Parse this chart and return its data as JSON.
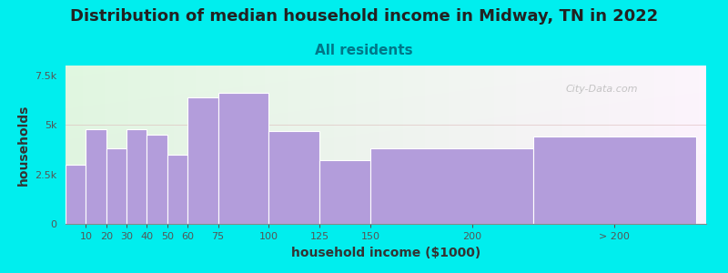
{
  "title": "Distribution of median household income in Midway, TN in 2022",
  "subtitle": "All residents",
  "xlabel": "household income ($1000)",
  "ylabel": "households",
  "background_outer": "#00EEEE",
  "bar_color": "#b39ddb",
  "bar_edge_color": "#b39ddb",
  "values": [
    3000,
    4800,
    3800,
    4800,
    4500,
    3500,
    6400,
    6600,
    4700,
    3200,
    3800,
    4400
  ],
  "bar_lefts": [
    0,
    10,
    20,
    30,
    40,
    50,
    60,
    75,
    100,
    125,
    150,
    230
  ],
  "bar_widths": [
    10,
    10,
    10,
    10,
    10,
    10,
    15,
    25,
    25,
    25,
    80,
    80
  ],
  "ylim": [
    0,
    8000
  ],
  "yticks": [
    0,
    2500,
    5000,
    7500
  ],
  "ytick_labels": [
    "0",
    "2.5k",
    "5k",
    "7.5k"
  ],
  "xlim": [
    0,
    315
  ],
  "xtick_positions": [
    10,
    20,
    30,
    40,
    50,
    60,
    75,
    100,
    125,
    150,
    200,
    270
  ],
  "xtick_labels": [
    "10",
    "20",
    "30",
    "40",
    "50",
    "60",
    "75",
    "100",
    "125",
    "150",
    "200",
    "> 200"
  ],
  "title_fontsize": 13,
  "subtitle_fontsize": 11,
  "axis_label_fontsize": 10,
  "tick_fontsize": 8,
  "watermark_text": "City-Data.com"
}
